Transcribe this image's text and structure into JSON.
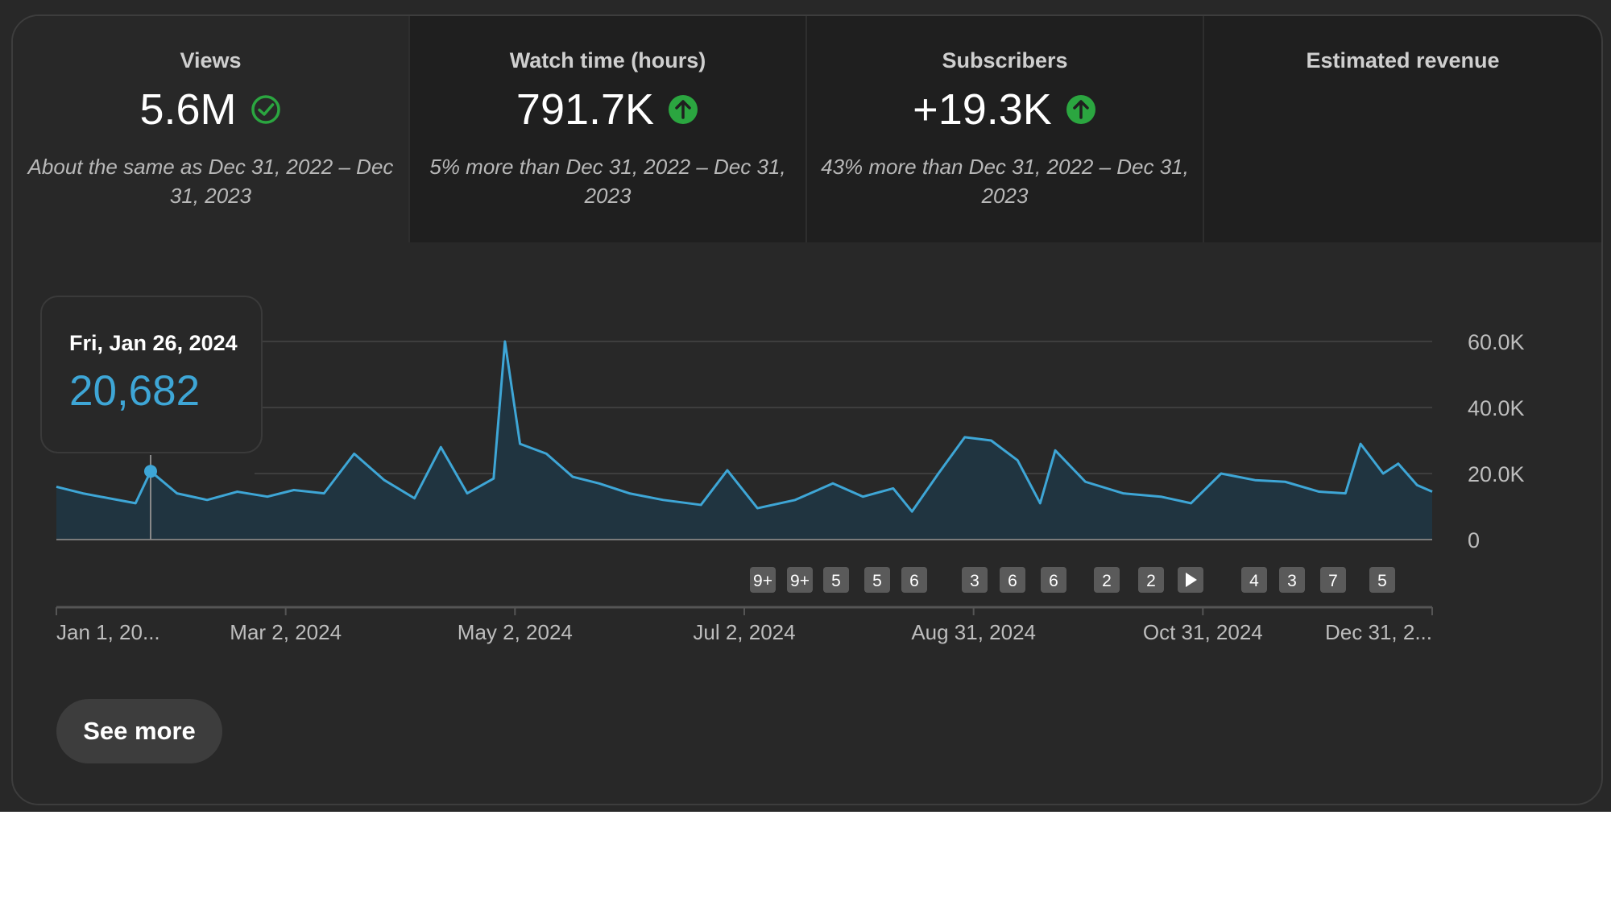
{
  "metrics": [
    {
      "title": "Views",
      "value": "5.6M",
      "icon": "check-circle-icon",
      "comparison": "About the same as Dec 31, 2022 – Dec 31, 2023"
    },
    {
      "title": "Watch time (hours)",
      "value": "791.7K",
      "icon": "arrow-up-icon",
      "comparison": "5% more than Dec 31, 2022 – Dec 31, 2023"
    },
    {
      "title": "Subscribers",
      "value": "+19.3K",
      "icon": "arrow-up-icon",
      "comparison": "43% more than Dec 31, 2022 – Dec 31, 2023"
    },
    {
      "title": "Estimated revenue",
      "value": "",
      "icon": "",
      "comparison": ""
    }
  ],
  "colors": {
    "line": "#3ea6d6",
    "positive": "#2ba640",
    "check": "#2ba640",
    "marker": "#5a5a5a"
  },
  "tooltip": {
    "date": "Fri, Jan 26, 2024",
    "value": "20,682"
  },
  "markers": [
    "9+",
    "9+",
    "5",
    "5",
    "6",
    "3",
    "6",
    "6",
    "2",
    "2",
    "play",
    "4",
    "3",
    "7",
    "5"
  ],
  "chart_data": {
    "type": "line",
    "x_start": "2024-01-01",
    "x_end": "2024-12-31",
    "x_ticks": [
      "Jan 1, 20...",
      "Mar 2, 2024",
      "May 2, 2024",
      "Jul 2, 2024",
      "Aug 31, 2024",
      "Oct 31, 2024",
      "Dec 31, 2..."
    ],
    "y_ticks": [
      "60.0K",
      "40.0K",
      "20.0K",
      "0"
    ],
    "ylim": [
      0,
      60000
    ],
    "grid": true,
    "series": [
      {
        "values": [
          {
            "x": "2024-01-01",
            "y": 16000
          },
          {
            "x": "2024-01-08",
            "y": 14000
          },
          {
            "x": "2024-01-15",
            "y": 12500
          },
          {
            "x": "2024-01-22",
            "y": 11000
          },
          {
            "x": "2024-01-26",
            "y": 20682
          },
          {
            "x": "2024-02-02",
            "y": 14000
          },
          {
            "x": "2024-02-10",
            "y": 12000
          },
          {
            "x": "2024-02-18",
            "y": 14500
          },
          {
            "x": "2024-02-26",
            "y": 13000
          },
          {
            "x": "2024-03-04",
            "y": 15000
          },
          {
            "x": "2024-03-12",
            "y": 14000
          },
          {
            "x": "2024-03-20",
            "y": 26000
          },
          {
            "x": "2024-03-28",
            "y": 18000
          },
          {
            "x": "2024-04-05",
            "y": 12500
          },
          {
            "x": "2024-04-12",
            "y": 28000
          },
          {
            "x": "2024-04-19",
            "y": 14000
          },
          {
            "x": "2024-04-26",
            "y": 18500
          },
          {
            "x": "2024-04-29",
            "y": 60000
          },
          {
            "x": "2024-05-03",
            "y": 29000
          },
          {
            "x": "2024-05-10",
            "y": 26000
          },
          {
            "x": "2024-05-17",
            "y": 19000
          },
          {
            "x": "2024-05-24",
            "y": 17000
          },
          {
            "x": "2024-06-01",
            "y": 14000
          },
          {
            "x": "2024-06-10",
            "y": 12000
          },
          {
            "x": "2024-06-20",
            "y": 10500
          },
          {
            "x": "2024-06-27",
            "y": 21000
          },
          {
            "x": "2024-07-05",
            "y": 9500
          },
          {
            "x": "2024-07-15",
            "y": 12000
          },
          {
            "x": "2024-07-25",
            "y": 17000
          },
          {
            "x": "2024-08-02",
            "y": 13000
          },
          {
            "x": "2024-08-10",
            "y": 15500
          },
          {
            "x": "2024-08-15",
            "y": 8500
          },
          {
            "x": "2024-08-22",
            "y": 20000
          },
          {
            "x": "2024-08-29",
            "y": 31000
          },
          {
            "x": "2024-09-05",
            "y": 30000
          },
          {
            "x": "2024-09-12",
            "y": 24000
          },
          {
            "x": "2024-09-18",
            "y": 11000
          },
          {
            "x": "2024-09-22",
            "y": 27000
          },
          {
            "x": "2024-09-30",
            "y": 17500
          },
          {
            "x": "2024-10-10",
            "y": 14000
          },
          {
            "x": "2024-10-20",
            "y": 13000
          },
          {
            "x": "2024-10-28",
            "y": 11000
          },
          {
            "x": "2024-11-05",
            "y": 20000
          },
          {
            "x": "2024-11-14",
            "y": 18000
          },
          {
            "x": "2024-11-22",
            "y": 17500
          },
          {
            "x": "2024-12-01",
            "y": 14500
          },
          {
            "x": "2024-12-08",
            "y": 14000
          },
          {
            "x": "2024-12-12",
            "y": 29000
          },
          {
            "x": "2024-12-18",
            "y": 20000
          },
          {
            "x": "2024-12-22",
            "y": 23000
          },
          {
            "x": "2024-12-27",
            "y": 16500
          },
          {
            "x": "2024-12-31",
            "y": 14500
          }
        ]
      }
    ]
  },
  "see_more_label": "See more"
}
